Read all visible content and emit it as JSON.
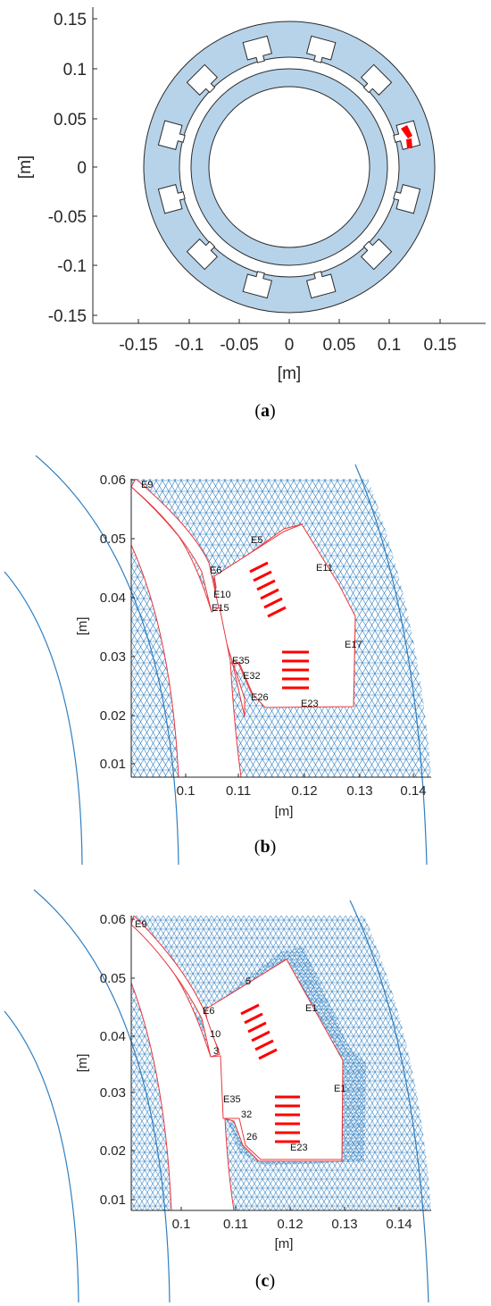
{
  "figure": {
    "panels": [
      {
        "id": "a",
        "caption": "(a)",
        "xlabel": "[m]",
        "ylabel": "[m]",
        "xticks": [
          "-0.15",
          "-0.1",
          "-0.05",
          "0",
          "0.05",
          "0.1",
          "0.15"
        ],
        "yticks": [
          "0.15",
          "0.1",
          "0.05",
          "0",
          "-0.05",
          "-0.1",
          "-0.15"
        ],
        "colors": {
          "iron": "#b7d3ea",
          "outline": "#2b2b2b",
          "highlight": "#ff0000"
        }
      },
      {
        "id": "b",
        "caption": "(b)",
        "xlabel": "[m]",
        "ylabel": "[m]",
        "xticks": [
          "0.1",
          "0.11",
          "0.12",
          "0.13",
          "0.14"
        ],
        "yticks": [
          "0.06",
          "0.05",
          "0.04",
          "0.03",
          "0.02",
          "0.01"
        ],
        "edge_labels": [
          "E9",
          "E5",
          "E6",
          "E11",
          "E10",
          "E15",
          "E17",
          "E35",
          "E32",
          "E26",
          "E23"
        ],
        "colors": {
          "mesh": "#2f7fc1",
          "boundary": "#e8383d",
          "current": "#ff0000"
        }
      },
      {
        "id": "c",
        "caption": "(c)",
        "xlabel": "[m]",
        "ylabel": "[m]",
        "xticks": [
          "0.1",
          "0.11",
          "0.12",
          "0.13",
          "0.14"
        ],
        "yticks": [
          "0.06",
          "0.05",
          "0.04",
          "0.03",
          "0.02",
          "0.01"
        ],
        "edge_labels": [
          "E9",
          "5",
          "E6",
          "E1",
          "10",
          "3",
          "E1",
          "E35",
          "32",
          "26",
          "E23"
        ],
        "colors": {
          "mesh": "#2f7fc1",
          "boundary": "#e8383d",
          "current": "#ff0000"
        }
      }
    ]
  }
}
